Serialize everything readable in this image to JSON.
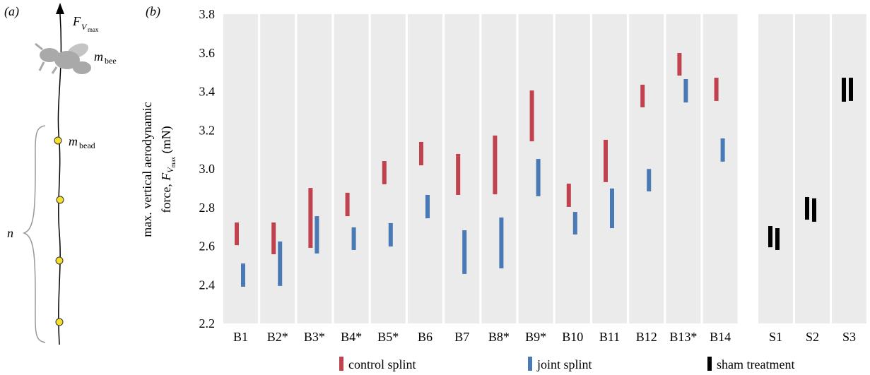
{
  "panel_a": {
    "label": "(a)",
    "force": "F",
    "force_sub": "V",
    "force_subsub": "max",
    "m_bee": "m",
    "m_bee_sub": "bee",
    "m_bead": "m",
    "m_bead_sub": "bead",
    "n": "n"
  },
  "chart_data": {
    "type": "range-bar",
    "panel_label": "(b)",
    "ylabel_line1": "max. vertical aerodynamic",
    "ylabel_prefix": "force, ",
    "ylabel_symbol": "F",
    "ylabel_sub": "V",
    "ylabel_subsub": "max",
    "ylabel_suffix": " (mN)",
    "categories": [
      "B1",
      "B2*",
      "B3*",
      "B4*",
      "B5*",
      "B6",
      "B7",
      "B8*",
      "B9*",
      "B10",
      "B11",
      "B12",
      "B13*",
      "B14",
      "S1",
      "S2",
      "S3"
    ],
    "ylim": [
      2.2,
      3.8
    ],
    "yticks": [
      2.2,
      2.4,
      2.6,
      2.8,
      {
        "value": 3,
        "label": "3.0"
      },
      3.2,
      3.4,
      3.6,
      3.8
    ],
    "series": [
      {
        "name": "control splint",
        "color": "#c0424f",
        "low": [
          2.605,
          2.558,
          2.591,
          2.755,
          2.92,
          3.018,
          2.865,
          2.868,
          3.142,
          2.803,
          2.931,
          3.318,
          3.482,
          3.351,
          null,
          null,
          null
        ],
        "high": [
          2.722,
          2.722,
          2.901,
          2.876,
          3.04,
          3.139,
          3.077,
          3.172,
          3.405,
          2.923,
          3.15,
          3.435,
          3.599,
          3.471,
          null,
          null,
          null
        ]
      },
      {
        "name": "joint splint",
        "color": "#4a7ab5",
        "low": [
          2.39,
          2.394,
          2.562,
          2.58,
          2.598,
          2.744,
          2.456,
          2.485,
          2.858,
          2.66,
          2.693,
          2.883,
          3.343,
          3.037,
          null,
          null,
          null
        ],
        "high": [
          2.51,
          2.624,
          2.755,
          2.697,
          2.719,
          2.865,
          2.682,
          2.748,
          3.051,
          2.777,
          2.898,
          2.999,
          3.464,
          3.157,
          null,
          null,
          null
        ]
      },
      {
        "name": "sham treatment",
        "color": "#000000",
        "low": [
          null,
          null,
          null,
          null,
          null,
          null,
          null,
          null,
          null,
          null,
          null,
          null,
          null,
          null,
          [
            2.594,
            2.58
          ],
          [
            2.737,
            2.726
          ],
          [
            3.347,
            3.351
          ]
        ],
        "high": [
          null,
          null,
          null,
          null,
          null,
          null,
          null,
          null,
          null,
          null,
          null,
          null,
          null,
          null,
          [
            2.704,
            2.693
          ],
          [
            2.854,
            2.847
          ],
          [
            3.471,
            3.471
          ]
        ]
      }
    ]
  }
}
